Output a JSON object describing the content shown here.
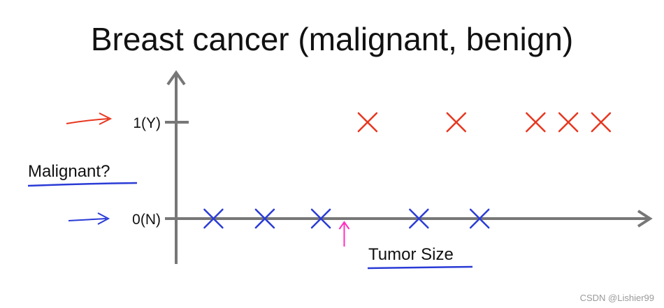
{
  "title": "Breast cancer (malignant, benign)",
  "watermark": "CSDN @Lishier99",
  "colors": {
    "axis": "#777777",
    "malignant": "#e8361f",
    "benign": "#2a3bd6",
    "threshold": "#ff2fbf",
    "text": "#111111",
    "watermark": "#9a9a9a"
  },
  "chart_data": {
    "type": "scatter",
    "title": "Breast cancer (malignant, benign)",
    "xlabel": "Tumor Size",
    "ylabel": "Malignant?",
    "yticks": [
      {
        "value": 1,
        "label": "1(Y)"
      },
      {
        "value": 0,
        "label": "0(N)"
      }
    ],
    "ylim": [
      0,
      1
    ],
    "xlim": [
      0,
      10
    ],
    "threshold_x": 3.6,
    "series": [
      {
        "label": "1(Y)",
        "y": 1,
        "x": [
          4.1,
          6.0,
          7.7,
          8.4,
          9.1
        ],
        "color": "#e8361f"
      },
      {
        "label": "0(N)",
        "y": 0,
        "x": [
          0.8,
          1.9,
          3.1,
          5.2,
          6.5
        ],
        "color": "#2a3bd6"
      }
    ]
  }
}
